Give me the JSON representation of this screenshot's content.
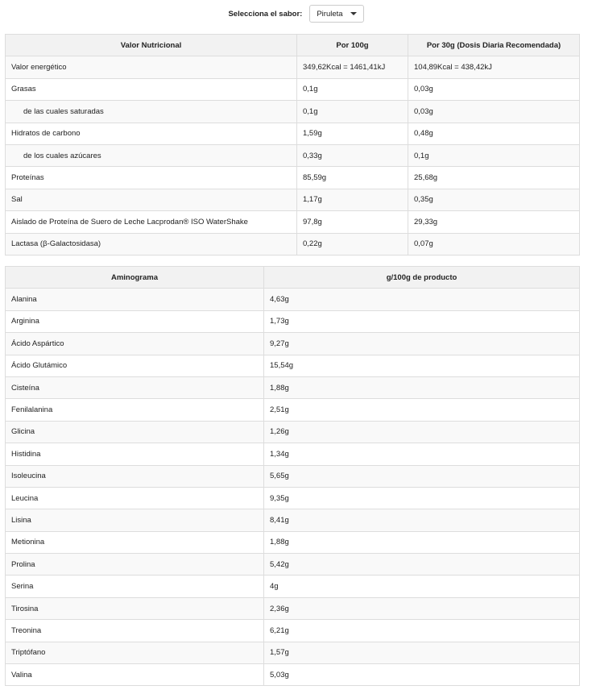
{
  "selector": {
    "label": "Selecciona el sabor:",
    "value": "Piruleta"
  },
  "nutrition_table": {
    "header": [
      "Valor Nutricional",
      "Por 100g",
      "Por 30g (Dosis Diaria Recomendada)"
    ],
    "rows": [
      [
        "Valor energético",
        "349,62Kcal = 1461,41kJ",
        "104,89Kcal = 438,42kJ"
      ],
      [
        "Grasas",
        "0,1g",
        "0,03g"
      ],
      [
        "de las cuales saturadas",
        "0,1g",
        "0,03g"
      ],
      [
        "Hidratos de carbono",
        "1,59g",
        "0,48g"
      ],
      [
        "de los cuales azúcares",
        "0,33g",
        "0,1g"
      ],
      [
        "Proteínas",
        "85,59g",
        "25,68g"
      ],
      [
        "Sal",
        "1,17g",
        "0,35g"
      ],
      [
        "Aislado de Proteína de Suero de Leche Lacprodan® ISO WaterShake",
        "97,8g",
        "29,33g"
      ],
      [
        "Lactasa (β-Galactosidasa)",
        "0,22g",
        "0,07g"
      ]
    ]
  },
  "amino_table": {
    "header": [
      "Aminograma",
      "g/100g de producto"
    ],
    "rows": [
      [
        "Alanina",
        "4,63g"
      ],
      [
        "Arginina",
        "1,73g"
      ],
      [
        "Ácido Aspártico",
        "9,27g"
      ],
      [
        "Ácido Glutámico",
        "15,54g"
      ],
      [
        "Cisteína",
        "1,88g"
      ],
      [
        "Fenilalanina",
        "2,51g"
      ],
      [
        "Glicina",
        "1,26g"
      ],
      [
        "Histidina",
        "1,34g"
      ],
      [
        "Isoleucina",
        "5,65g"
      ],
      [
        "Leucina",
        "9,35g"
      ],
      [
        "Lisina",
        "8,41g"
      ],
      [
        "Metionina",
        "1,88g"
      ],
      [
        "Prolina",
        "5,42g"
      ],
      [
        "Serina",
        "4g"
      ],
      [
        "Tirosina",
        "2,36g"
      ],
      [
        "Treonina",
        "6,21g"
      ],
      [
        "Triptófano",
        "1,57g"
      ],
      [
        "Valina",
        "5,03g"
      ]
    ]
  }
}
